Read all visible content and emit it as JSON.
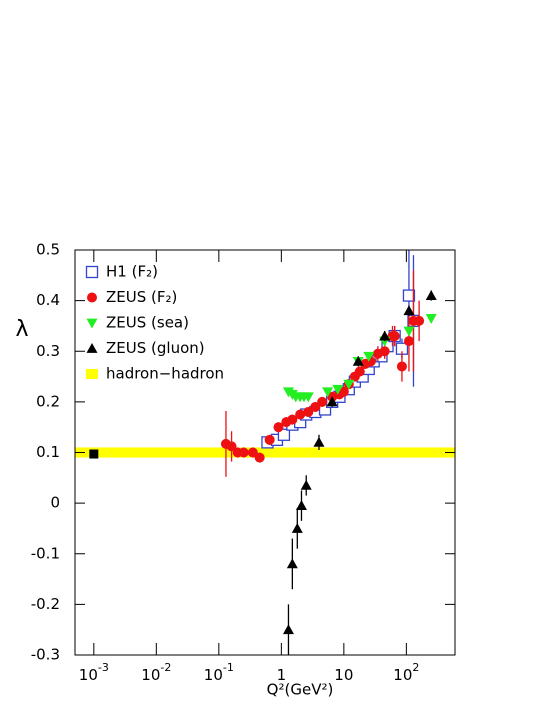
{
  "chart_data": {
    "type": "scatter",
    "x_label": "Q²(GeV²)",
    "y_label": "λ",
    "xlog": true,
    "xlim": [
      0.0005,
      600
    ],
    "ylim": [
      -0.3,
      0.5
    ],
    "xticks": [
      {
        "value": 0.001,
        "label": "10^-3"
      },
      {
        "value": 0.01,
        "label": "10^-2"
      },
      {
        "value": 0.1,
        "label": "10^-1"
      },
      1,
      10,
      {
        "value": 100,
        "label": "10^2"
      }
    ],
    "yticks": [
      -0.3,
      -0.2,
      -0.1,
      0,
      0.1,
      0.2,
      0.3,
      0.4,
      0.5
    ],
    "legend": "upper left",
    "series": [
      {
        "name": "H1 (F₂)",
        "color": "#3344cc",
        "marker": "square",
        "x": [
          0.6,
          0.85,
          1.1,
          1.5,
          2,
          2.5,
          3.5,
          5,
          6.5,
          8.5,
          12,
          15,
          20,
          25,
          30,
          40,
          50,
          65,
          85,
          110,
          130
        ],
        "values": [
          0.12,
          0.125,
          0.135,
          0.155,
          0.16,
          0.175,
          0.18,
          0.185,
          0.2,
          0.21,
          0.225,
          0.24,
          0.25,
          0.265,
          0.28,
          0.29,
          0.31,
          0.33,
          0.305,
          0.41,
          0.36
        ],
        "errors": [
          0.01,
          0.01,
          0.01,
          0.01,
          0.01,
          0.01,
          0.01,
          0.01,
          0.01,
          0.01,
          0.01,
          0.01,
          0.01,
          0.01,
          0.01,
          0.01,
          0.015,
          0.02,
          0.02,
          0.1,
          0.13
        ]
      },
      {
        "name": "ZEUS (F₂)",
        "color": "#ee1111",
        "marker": "circle",
        "x": [
          0.13,
          0.16,
          0.2,
          0.25,
          0.35,
          0.45,
          0.65,
          0.9,
          1.2,
          1.5,
          2,
          2.7,
          3.5,
          4.5,
          6.5,
          8.5,
          10,
          12,
          15,
          18,
          22,
          27,
          35,
          45,
          60,
          65,
          85,
          110,
          130,
          160
        ],
        "values": [
          0.117,
          0.112,
          0.1,
          0.1,
          0.1,
          0.09,
          0.125,
          0.15,
          0.16,
          0.165,
          0.175,
          0.18,
          0.19,
          0.2,
          0.21,
          0.215,
          0.22,
          0.235,
          0.25,
          0.26,
          0.275,
          0.28,
          0.295,
          0.3,
          0.33,
          0.33,
          0.27,
          0.32,
          0.36,
          0.36
        ],
        "errors": [
          0.065,
          0.03,
          0.01,
          0.01,
          0.01,
          0.01,
          0.01,
          0.01,
          0.01,
          0.01,
          0.01,
          0.01,
          0.01,
          0.01,
          0.01,
          0.01,
          0.01,
          0.01,
          0.01,
          0.01,
          0.01,
          0.01,
          0.015,
          0.015,
          0.02,
          0.02,
          0.03,
          0.06,
          0.1,
          0.04
        ]
      },
      {
        "name": "ZEUS (sea)",
        "color": "#22ee22",
        "marker": "tri-down",
        "x": [
          1.3,
          1.5,
          1.7,
          2,
          2.3,
          2.7,
          5.5,
          8,
          12,
          17,
          25,
          45,
          110,
          250
        ],
        "values": [
          0.22,
          0.215,
          0.21,
          0.21,
          0.21,
          0.21,
          0.22,
          0.225,
          0.235,
          0.28,
          0.29,
          0.32,
          0.34,
          0.365
        ]
      },
      {
        "name": "ZEUS (gluon)",
        "color": "#000000",
        "marker": "tri-up",
        "x": [
          1.3,
          1.5,
          1.8,
          2.1,
          2.5,
          4,
          6.5,
          17,
          45,
          110,
          250
        ],
        "values": [
          -0.25,
          -0.12,
          -0.05,
          -0.005,
          0.035,
          0.12,
          0.2,
          0.28,
          0.33,
          0.38,
          0.41
        ],
        "errors": [
          0.05,
          0.05,
          0.04,
          0.03,
          0.02,
          0.015,
          0.01,
          0.01,
          0.01,
          0.01,
          0.01
        ]
      },
      {
        "name": "hadron−hadron",
        "color": "#ffff00",
        "marker": "band",
        "band": [
          0.09,
          0.11
        ],
        "marker_color": "#000000",
        "x": [
          0.001
        ],
        "values": [
          0.097
        ]
      }
    ]
  }
}
